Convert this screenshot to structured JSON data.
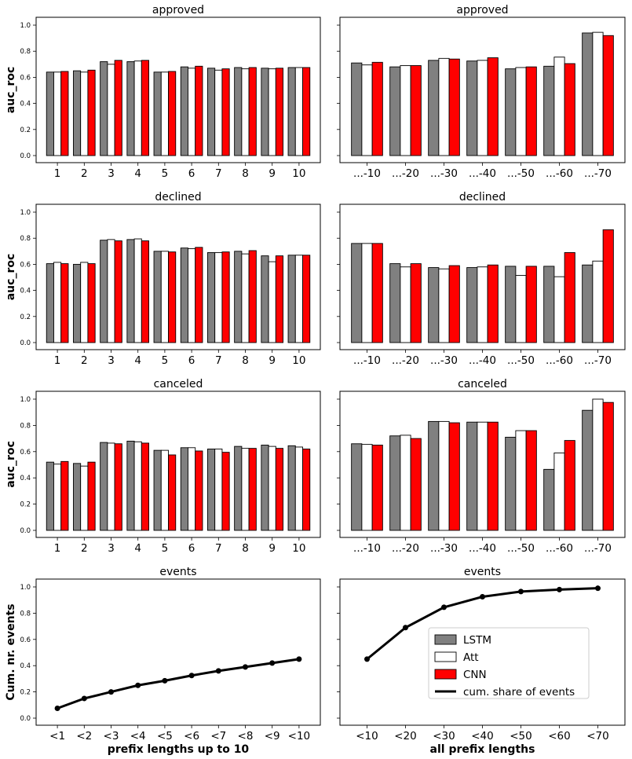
{
  "colors": {
    "LSTM": "#808080",
    "Att": "#ffffff",
    "CNN": "#ff0000",
    "line": "#000000"
  },
  "legend": [
    "LSTM",
    "Att",
    "CNN",
    "cum. share of events"
  ],
  "ylabels": {
    "auc": "auc_roc",
    "events": "Cum. nr. events"
  },
  "xlabels": {
    "left": "prefix lengths up to 10",
    "right": "all prefix lengths"
  },
  "y_ticks": [
    "0.0",
    "0.2",
    "0.4",
    "0.6",
    "0.8",
    "1.0"
  ],
  "chart_data": [
    {
      "id": "approved-left",
      "type": "bar",
      "title": "approved",
      "ylim": [
        0,
        1.05
      ],
      "categories": [
        "1",
        "2",
        "3",
        "4",
        "5",
        "6",
        "7",
        "8",
        "9",
        "10"
      ],
      "series": [
        {
          "name": "LSTM",
          "values": [
            0.64,
            0.65,
            0.72,
            0.72,
            0.64,
            0.68,
            0.67,
            0.675,
            0.67,
            0.675
          ]
        },
        {
          "name": "Att",
          "values": [
            0.64,
            0.64,
            0.7,
            0.725,
            0.64,
            0.67,
            0.655,
            0.665,
            0.665,
            0.675
          ]
        },
        {
          "name": "CNN",
          "values": [
            0.645,
            0.655,
            0.73,
            0.73,
            0.645,
            0.685,
            0.665,
            0.675,
            0.67,
            0.675
          ]
        }
      ]
    },
    {
      "id": "approved-right",
      "type": "bar",
      "title": "approved",
      "ylim": [
        0,
        1.05
      ],
      "categories": [
        "...-10",
        "...-20",
        "...-30",
        "...-40",
        "...-50",
        "...-60",
        "...-70"
      ],
      "series": [
        {
          "name": "LSTM",
          "values": [
            0.71,
            0.68,
            0.73,
            0.725,
            0.665,
            0.685,
            0.94
          ]
        },
        {
          "name": "Att",
          "values": [
            0.695,
            0.69,
            0.745,
            0.73,
            0.675,
            0.755,
            0.945
          ]
        },
        {
          "name": "CNN",
          "values": [
            0.715,
            0.69,
            0.74,
            0.75,
            0.68,
            0.705,
            0.92
          ]
        }
      ]
    },
    {
      "id": "declined-left",
      "type": "bar",
      "title": "declined",
      "ylim": [
        0,
        1.05
      ],
      "categories": [
        "1",
        "2",
        "3",
        "4",
        "5",
        "6",
        "7",
        "8",
        "9",
        "10"
      ],
      "series": [
        {
          "name": "LSTM",
          "values": [
            0.605,
            0.6,
            0.785,
            0.79,
            0.7,
            0.725,
            0.69,
            0.7,
            0.665,
            0.67
          ]
        },
        {
          "name": "Att",
          "values": [
            0.615,
            0.615,
            0.79,
            0.795,
            0.7,
            0.72,
            0.69,
            0.68,
            0.62,
            0.67
          ]
        },
        {
          "name": "CNN",
          "values": [
            0.605,
            0.605,
            0.78,
            0.78,
            0.695,
            0.73,
            0.695,
            0.705,
            0.665,
            0.67
          ]
        }
      ]
    },
    {
      "id": "declined-right",
      "type": "bar",
      "title": "declined",
      "ylim": [
        0,
        1.05
      ],
      "categories": [
        "...-10",
        "...-20",
        "...-30",
        "...-40",
        "...-50",
        "...-60",
        "...-70"
      ],
      "series": [
        {
          "name": "LSTM",
          "values": [
            0.76,
            0.605,
            0.575,
            0.575,
            0.585,
            0.585,
            0.595
          ]
        },
        {
          "name": "Att",
          "values": [
            0.76,
            0.58,
            0.565,
            0.58,
            0.515,
            0.505,
            0.625
          ]
        },
        {
          "name": "CNN",
          "values": [
            0.76,
            0.605,
            0.59,
            0.595,
            0.585,
            0.69,
            0.865
          ]
        }
      ]
    },
    {
      "id": "canceled-left",
      "type": "bar",
      "title": "canceled",
      "ylim": [
        0,
        1.05
      ],
      "categories": [
        "1",
        "2",
        "3",
        "4",
        "5",
        "6",
        "7",
        "8",
        "9",
        "10"
      ],
      "series": [
        {
          "name": "LSTM",
          "values": [
            0.52,
            0.51,
            0.67,
            0.68,
            0.61,
            0.63,
            0.62,
            0.64,
            0.65,
            0.645
          ]
        },
        {
          "name": "Att",
          "values": [
            0.505,
            0.49,
            0.665,
            0.675,
            0.61,
            0.63,
            0.62,
            0.625,
            0.64,
            0.635
          ]
        },
        {
          "name": "CNN",
          "values": [
            0.525,
            0.52,
            0.66,
            0.665,
            0.575,
            0.605,
            0.595,
            0.625,
            0.625,
            0.62
          ]
        }
      ]
    },
    {
      "id": "canceled-right",
      "type": "bar",
      "title": "canceled",
      "ylim": [
        0,
        1.05
      ],
      "categories": [
        "...-10",
        "...-20",
        "...-30",
        "...-40",
        "...-50",
        "...-60",
        "...-70"
      ],
      "series": [
        {
          "name": "LSTM",
          "values": [
            0.66,
            0.72,
            0.83,
            0.825,
            0.71,
            0.465,
            0.915
          ]
        },
        {
          "name": "Att",
          "values": [
            0.655,
            0.725,
            0.83,
            0.825,
            0.76,
            0.59,
            1.0
          ]
        },
        {
          "name": "CNN",
          "values": [
            0.65,
            0.7,
            0.82,
            0.825,
            0.76,
            0.685,
            0.975
          ]
        }
      ]
    },
    {
      "id": "events-left",
      "type": "line",
      "title": "events",
      "ylim": [
        0,
        1.05
      ],
      "categories": [
        "<1",
        "<2",
        "<3",
        "<4",
        "<5",
        "<6",
        "<7",
        "<8",
        "<9",
        "<10"
      ],
      "series": [
        {
          "name": "cum. share of events",
          "values": [
            0.075,
            0.15,
            0.2,
            0.25,
            0.285,
            0.325,
            0.36,
            0.39,
            0.42,
            0.45
          ]
        }
      ]
    },
    {
      "id": "events-right",
      "type": "line",
      "title": "events",
      "ylim": [
        0,
        1.05
      ],
      "categories": [
        "<10",
        "<20",
        "<30",
        "<40",
        "<50",
        "<60",
        "<70"
      ],
      "series": [
        {
          "name": "cum. share of events",
          "values": [
            0.45,
            0.69,
            0.845,
            0.925,
            0.965,
            0.98,
            0.99
          ]
        }
      ]
    }
  ]
}
